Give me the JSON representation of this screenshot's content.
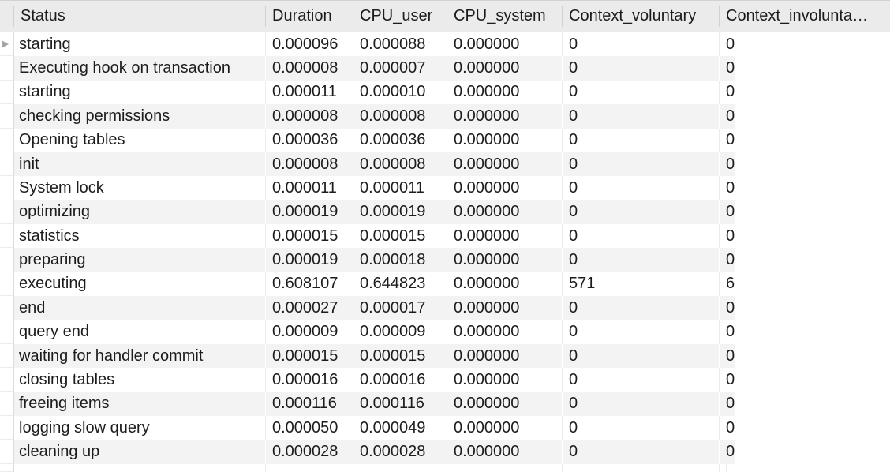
{
  "app": {
    "type": "database-results-grid"
  },
  "table": {
    "gutter_width": 18,
    "current_row_index": 0,
    "current_row_icon": "right-arrow-icon",
    "header": [
      {
        "id": "status",
        "label": "Status"
      },
      {
        "id": "duration",
        "label": "Duration"
      },
      {
        "id": "cpu_user",
        "label": "CPU_user"
      },
      {
        "id": "cpu_system",
        "label": "CPU_system"
      },
      {
        "id": "context_voluntary",
        "label": "Context_voluntary"
      },
      {
        "id": "context_involuntary",
        "label": "Context_involunta…"
      }
    ],
    "rows": [
      [
        "starting",
        "0.000096",
        "0.000088",
        "0.000000",
        "0",
        "0"
      ],
      [
        "Executing hook on transaction",
        "0.000008",
        "0.000007",
        "0.000000",
        "0",
        "0"
      ],
      [
        "starting",
        "0.000011",
        "0.000010",
        "0.000000",
        "0",
        "0"
      ],
      [
        "checking permissions",
        "0.000008",
        "0.000008",
        "0.000000",
        "0",
        "0"
      ],
      [
        "Opening tables",
        "0.000036",
        "0.000036",
        "0.000000",
        "0",
        "0"
      ],
      [
        "init",
        "0.000008",
        "0.000008",
        "0.000000",
        "0",
        "0"
      ],
      [
        "System lock",
        "0.000011",
        "0.000011",
        "0.000000",
        "0",
        "0"
      ],
      [
        "optimizing",
        "0.000019",
        "0.000019",
        "0.000000",
        "0",
        "0"
      ],
      [
        "statistics",
        "0.000015",
        "0.000015",
        "0.000000",
        "0",
        "0"
      ],
      [
        "preparing",
        "0.000019",
        "0.000018",
        "0.000000",
        "0",
        "0"
      ],
      [
        "executing",
        "0.608107",
        "0.644823",
        "0.000000",
        "571",
        "6"
      ],
      [
        "end",
        "0.000027",
        "0.000017",
        "0.000000",
        "0",
        "0"
      ],
      [
        "query end",
        "0.000009",
        "0.000009",
        "0.000000",
        "0",
        "0"
      ],
      [
        "waiting for handler commit",
        "0.000015",
        "0.000015",
        "0.000000",
        "0",
        "0"
      ],
      [
        "closing tables",
        "0.000016",
        "0.000016",
        "0.000000",
        "0",
        "0"
      ],
      [
        "freeing items",
        "0.000116",
        "0.000116",
        "0.000000",
        "0",
        "0"
      ],
      [
        "logging slow query",
        "0.000050",
        "0.000049",
        "0.000000",
        "0",
        "0"
      ],
      [
        "cleaning up",
        "0.000028",
        "0.000028",
        "0.000000",
        "0",
        "0"
      ]
    ]
  },
  "colors": {
    "header_bg": "#ebebeb",
    "header_separator": "#d1d1d1",
    "header_border": "#e0e0e0",
    "row_bg": "#ffffff",
    "row_alt_bg": "#f3f3f3",
    "grid_line": "#ebebeb",
    "gutter_border": "#dcdcdc",
    "gutter_line": "#ececec",
    "top_border": "#d2d2d2",
    "text": "#1c1c1e",
    "arrow": "#a5a5a5"
  }
}
